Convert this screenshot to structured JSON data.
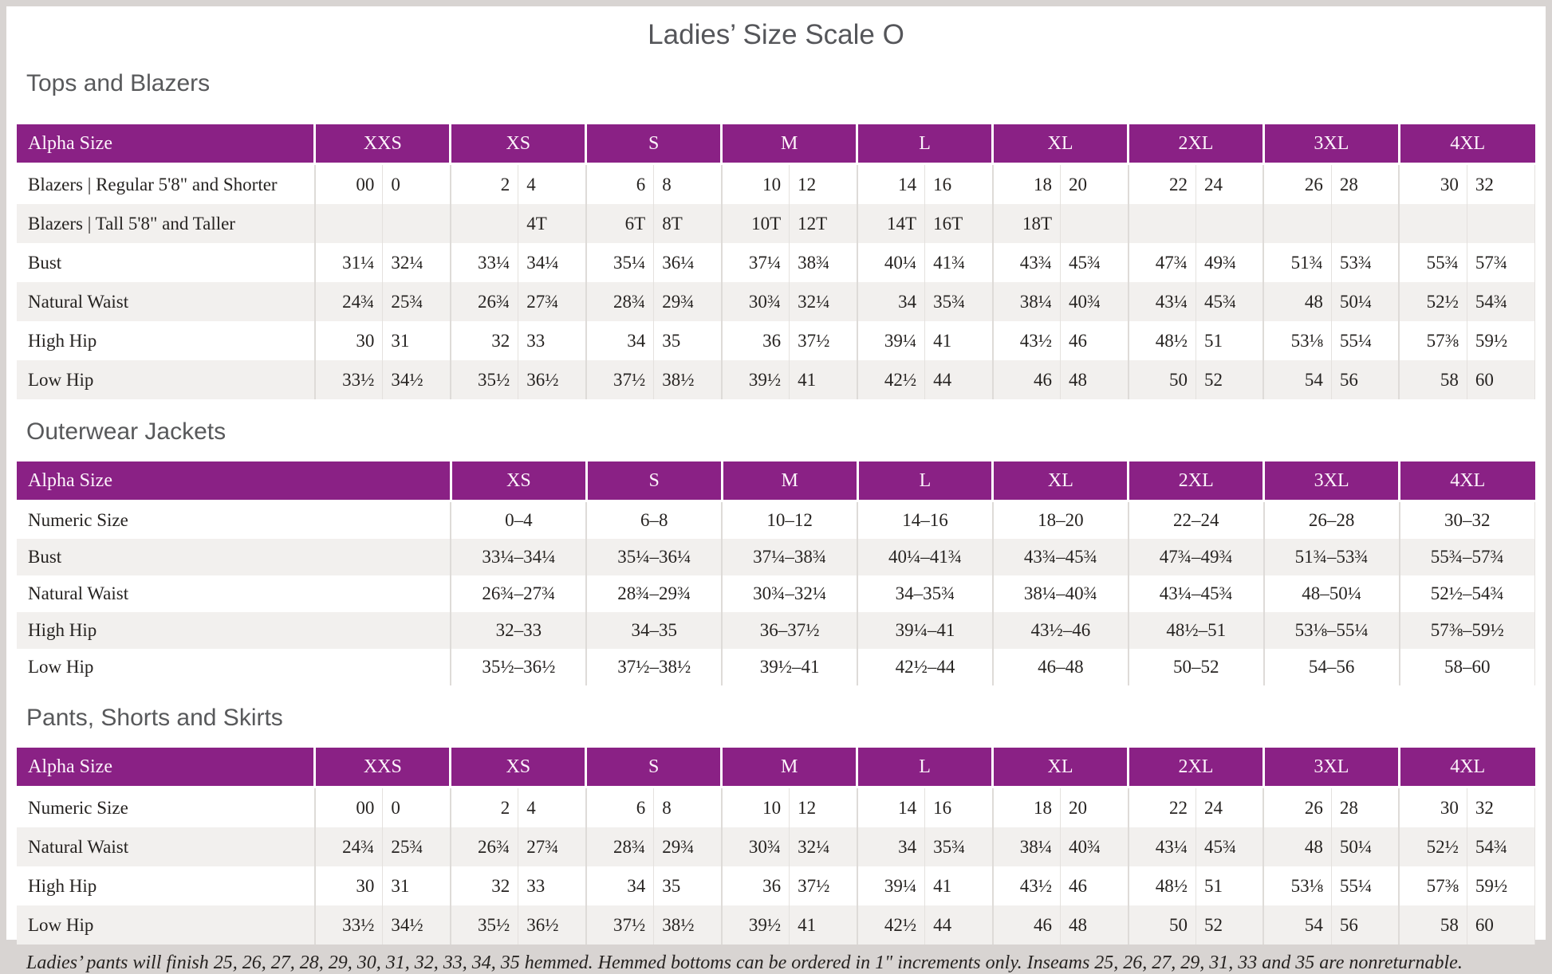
{
  "title": "Ladies’ Size Scale O",
  "colors": {
    "accent_purple": "#8A2185",
    "header_text": "#FDF4FB",
    "row_stripe": "#F2F0EE",
    "heading_gray": "#58595B",
    "body_text": "#262321",
    "page_frame": "#D8D4D2"
  },
  "tables": [
    {
      "heading": "Tops and Blazers",
      "type": "paired",
      "header": [
        "Alpha Size",
        "XXS",
        "XS",
        "S",
        "M",
        "L",
        "XL",
        "2XL",
        "3XL",
        "4XL"
      ],
      "rows": [
        {
          "label": "Blazers | Regular 5'8\" and Shorter",
          "pairs": [
            [
              "00",
              "0"
            ],
            [
              "2",
              "4"
            ],
            [
              "6",
              "8"
            ],
            [
              "10",
              "12"
            ],
            [
              "14",
              "16"
            ],
            [
              "18",
              "20"
            ],
            [
              "22",
              "24"
            ],
            [
              "26",
              "28"
            ],
            [
              "30",
              "32"
            ]
          ]
        },
        {
          "label": "Blazers | Tall 5'8\" and Taller",
          "pairs": [
            [
              "",
              ""
            ],
            [
              "",
              "4T"
            ],
            [
              "6T",
              "8T"
            ],
            [
              "10T",
              "12T"
            ],
            [
              "14T",
              "16T"
            ],
            [
              "18T",
              ""
            ],
            [
              "",
              ""
            ],
            [
              "",
              ""
            ],
            [
              "",
              ""
            ]
          ]
        },
        {
          "label": "Bust",
          "pairs": [
            [
              "31¼",
              "32¼"
            ],
            [
              "33¼",
              "34¼"
            ],
            [
              "35¼",
              "36¼"
            ],
            [
              "37¼",
              "38¾"
            ],
            [
              "40¼",
              "41¾"
            ],
            [
              "43¾",
              "45¾"
            ],
            [
              "47¾",
              "49¾"
            ],
            [
              "51¾",
              "53¾"
            ],
            [
              "55¾",
              "57¾"
            ]
          ]
        },
        {
          "label": "Natural Waist",
          "pairs": [
            [
              "24¾",
              "25¾"
            ],
            [
              "26¾",
              "27¾"
            ],
            [
              "28¾",
              "29¾"
            ],
            [
              "30¾",
              "32¼"
            ],
            [
              "34",
              "35¾"
            ],
            [
              "38¼",
              "40¾"
            ],
            [
              "43¼",
              "45¾"
            ],
            [
              "48",
              "50¼"
            ],
            [
              "52½",
              "54¾"
            ]
          ]
        },
        {
          "label": "High Hip",
          "pairs": [
            [
              "30",
              "31"
            ],
            [
              "32",
              "33"
            ],
            [
              "34",
              "35"
            ],
            [
              "36",
              "37½"
            ],
            [
              "39¼",
              "41"
            ],
            [
              "43½",
              "46"
            ],
            [
              "48½",
              "51"
            ],
            [
              "53⅛",
              "55¼"
            ],
            [
              "57⅜",
              "59½"
            ]
          ]
        },
        {
          "label": "Low Hip",
          "pairs": [
            [
              "33½",
              "34½"
            ],
            [
              "35½",
              "36½"
            ],
            [
              "37½",
              "38½"
            ],
            [
              "39½",
              "41"
            ],
            [
              "42½",
              "44"
            ],
            [
              "46",
              "48"
            ],
            [
              "50",
              "52"
            ],
            [
              "54",
              "56"
            ],
            [
              "58",
              "60"
            ]
          ]
        }
      ]
    },
    {
      "heading": "Outerwear Jackets",
      "type": "range",
      "header": [
        "Alpha Size",
        "XS",
        "S",
        "M",
        "L",
        "XL",
        "2XL",
        "3XL",
        "4XL"
      ],
      "rows": [
        {
          "label": "Numeric Size",
          "values": [
            "0–4",
            "6–8",
            "10–12",
            "14–16",
            "18–20",
            "22–24",
            "26–28",
            "30–32"
          ]
        },
        {
          "label": "Bust",
          "values": [
            "33¼–34¼",
            "35¼–36¼",
            "37¼–38¾",
            "40¼–41¾",
            "43¾–45¾",
            "47¾–49¾",
            "51¾–53¾",
            "55¾–57¾"
          ]
        },
        {
          "label": "Natural Waist",
          "values": [
            "26¾–27¾",
            "28¾–29¾",
            "30¾–32¼",
            "34–35¾",
            "38¼–40¾",
            "43¼–45¾",
            "48–50¼",
            "52½–54¾"
          ]
        },
        {
          "label": "High Hip",
          "values": [
            "32–33",
            "34–35",
            "36–37½",
            "39¼–41",
            "43½–46",
            "48½–51",
            "53⅛–55¼",
            "57⅜–59½"
          ]
        },
        {
          "label": "Low Hip",
          "values": [
            "35½–36½",
            "37½–38½",
            "39½–41",
            "42½–44",
            "46–48",
            "50–52",
            "54–56",
            "58–60"
          ]
        }
      ]
    },
    {
      "heading": "Pants, Shorts and Skirts",
      "type": "paired",
      "header": [
        "Alpha Size",
        "XXS",
        "XS",
        "S",
        "M",
        "L",
        "XL",
        "2XL",
        "3XL",
        "4XL"
      ],
      "rows": [
        {
          "label": "Numeric Size",
          "pairs": [
            [
              "00",
              "0"
            ],
            [
              "2",
              "4"
            ],
            [
              "6",
              "8"
            ],
            [
              "10",
              "12"
            ],
            [
              "14",
              "16"
            ],
            [
              "18",
              "20"
            ],
            [
              "22",
              "24"
            ],
            [
              "26",
              "28"
            ],
            [
              "30",
              "32"
            ]
          ]
        },
        {
          "label": "Natural Waist",
          "pairs": [
            [
              "24¾",
              "25¾"
            ],
            [
              "26¾",
              "27¾"
            ],
            [
              "28¾",
              "29¾"
            ],
            [
              "30¾",
              "32¼"
            ],
            [
              "34",
              "35¾"
            ],
            [
              "38¼",
              "40¾"
            ],
            [
              "43¼",
              "45¾"
            ],
            [
              "48",
              "50¼"
            ],
            [
              "52½",
              "54¾"
            ]
          ]
        },
        {
          "label": "High Hip",
          "pairs": [
            [
              "30",
              "31"
            ],
            [
              "32",
              "33"
            ],
            [
              "34",
              "35"
            ],
            [
              "36",
              "37½"
            ],
            [
              "39¼",
              "41"
            ],
            [
              "43½",
              "46"
            ],
            [
              "48½",
              "51"
            ],
            [
              "53⅛",
              "55¼"
            ],
            [
              "57⅜",
              "59½"
            ]
          ]
        },
        {
          "label": "Low Hip",
          "pairs": [
            [
              "33½",
              "34½"
            ],
            [
              "35½",
              "36½"
            ],
            [
              "37½",
              "38½"
            ],
            [
              "39½",
              "41"
            ],
            [
              "42½",
              "44"
            ],
            [
              "46",
              "48"
            ],
            [
              "50",
              "52"
            ],
            [
              "54",
              "56"
            ],
            [
              "58",
              "60"
            ]
          ]
        }
      ]
    }
  ],
  "footnote": "Ladies’ pants will finish 25, 26, 27, 28, 29, 30, 31, 32, 33, 34, 35 hemmed. Hemmed bottoms can be ordered in 1\" increments only. Inseams 25, 26, 27, 29, 31, 33 and 35 are nonreturnable."
}
